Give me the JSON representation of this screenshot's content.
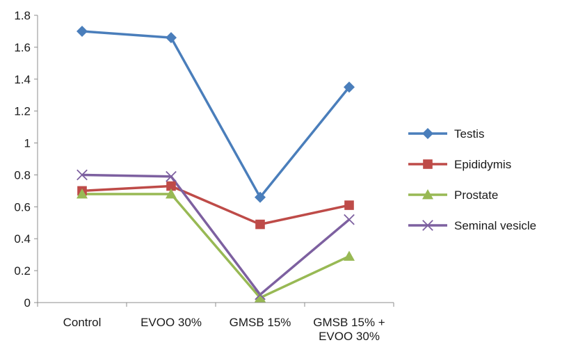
{
  "chart_data": {
    "type": "line",
    "categories": [
      "Control",
      "EVOO 30%",
      "GMSB 15%",
      "GMSB 15% + EVOO 30%"
    ],
    "category_label_lines": [
      [
        "Control"
      ],
      [
        "EVOO 30%"
      ],
      [
        "GMSB 15%"
      ],
      [
        "GMSB 15% +",
        "EVOO 30%"
      ]
    ],
    "ylim": [
      0,
      1.8
    ],
    "yticks": [
      "0",
      "0.2",
      "0.4",
      "0.6",
      "0.8",
      "1",
      "1.2",
      "1.4",
      "1.6",
      "1.8"
    ],
    "grid": false,
    "legend_position": "right",
    "series": [
      {
        "name": "Testis",
        "values": [
          1.7,
          1.66,
          0.66,
          1.35
        ],
        "color": "#4a7ebb",
        "marker": "diamond"
      },
      {
        "name": "Epididymis",
        "values": [
          0.7,
          0.73,
          0.49,
          0.61
        ],
        "color": "#be4b48",
        "marker": "square"
      },
      {
        "name": "Prostate",
        "values": [
          0.68,
          0.68,
          0.03,
          0.29
        ],
        "color": "#98b954",
        "marker": "triangle"
      },
      {
        "name": "Seminal vesicle",
        "values": [
          0.8,
          0.79,
          0.05,
          0.52
        ],
        "color": "#7d60a0",
        "marker": "x"
      }
    ]
  }
}
